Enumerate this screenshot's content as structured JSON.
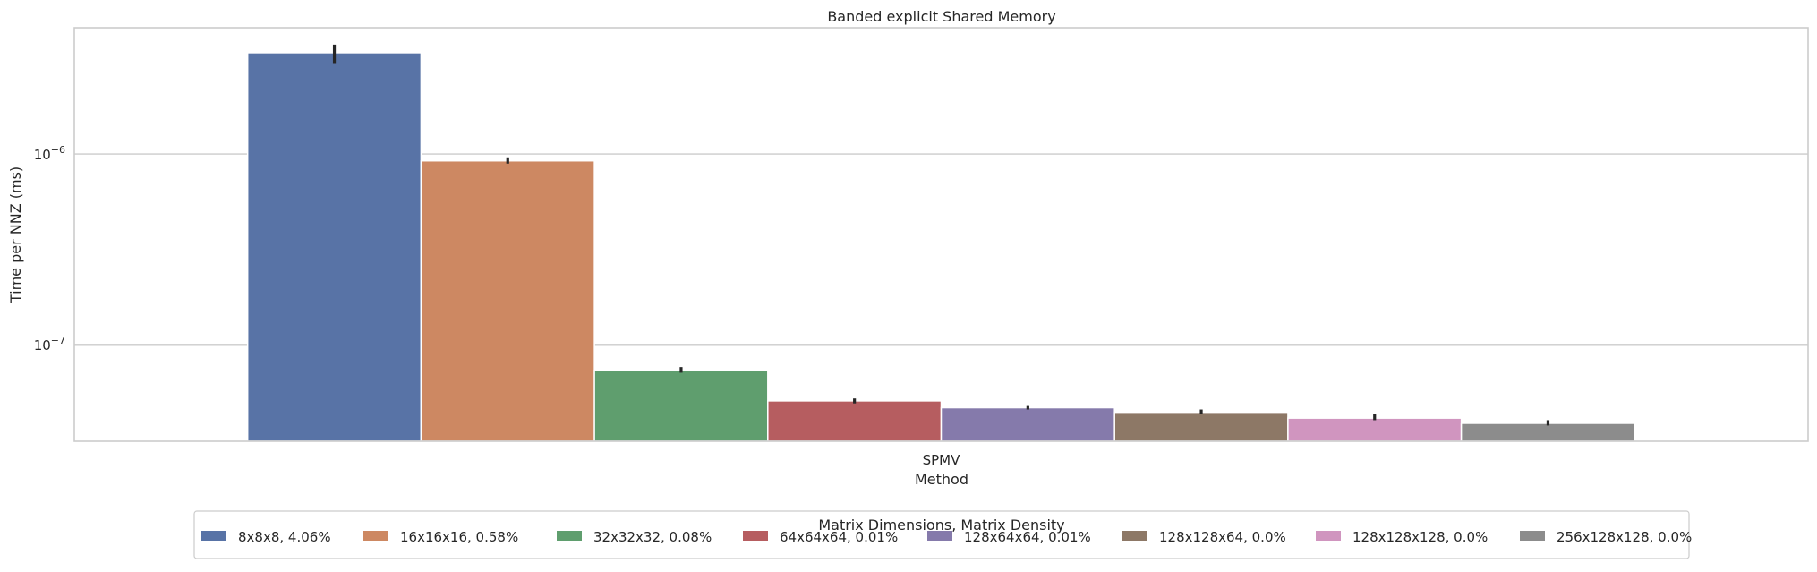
{
  "chart_data": {
    "type": "bar",
    "title": "Banded explicit Shared Memory",
    "xlabel": "Method",
    "ylabel": "Time per NNZ (ms)",
    "yscale": "log",
    "ylim": [
      3.1e-08,
      4.6e-06
    ],
    "yticks": [
      {
        "value": 1e-07,
        "base": "10",
        "exp": "−7"
      },
      {
        "value": 1e-06,
        "base": "10",
        "exp": "−6"
      }
    ],
    "categories": [
      "SPMV"
    ],
    "grid": true,
    "legend": {
      "title": "Matrix Dimensions, Matrix Density",
      "placement": "lower-center-outside"
    },
    "series": [
      {
        "name": "8x8x8, 4.06%",
        "color": "#5873a6",
        "values": [
          3.4e-06
        ],
        "err": [
          [
            3e-06,
            3.75e-06
          ]
        ]
      },
      {
        "name": "16x16x16, 0.58%",
        "color": "#cd8862",
        "values": [
          9.2e-07
        ],
        "err": [
          [
            8.9e-07,
            9.6e-07
          ]
        ]
      },
      {
        "name": "32x32x32, 0.08%",
        "color": "#5f9e6e",
        "values": [
          7.3e-08
        ],
        "err": [
          [
            7.1e-08,
            7.6e-08
          ]
        ]
      },
      {
        "name": "64x64x64, 0.01%",
        "color": "#b65d60",
        "values": [
          5.05e-08
        ],
        "err": [
          [
            4.9e-08,
            5.2e-08
          ]
        ]
      },
      {
        "name": "128x64x64, 0.01%",
        "color": "#857aab",
        "values": [
          4.65e-08
        ],
        "err": [
          [
            4.55e-08,
            4.8e-08
          ]
        ]
      },
      {
        "name": "128x128x64, 0.0%",
        "color": "#8d7866",
        "values": [
          4.4e-08
        ],
        "err": [
          [
            4.3e-08,
            4.55e-08
          ]
        ]
      },
      {
        "name": "128x128x128, 0.0%",
        "color": "#d095bf",
        "values": [
          4.1e-08
        ],
        "err": [
          [
            4e-08,
            4.3e-08
          ]
        ]
      },
      {
        "name": "256x128x128, 0.0%",
        "color": "#8c8c8c",
        "values": [
          3.85e-08
        ],
        "err": [
          [
            3.75e-08,
            4e-08
          ]
        ]
      }
    ]
  }
}
